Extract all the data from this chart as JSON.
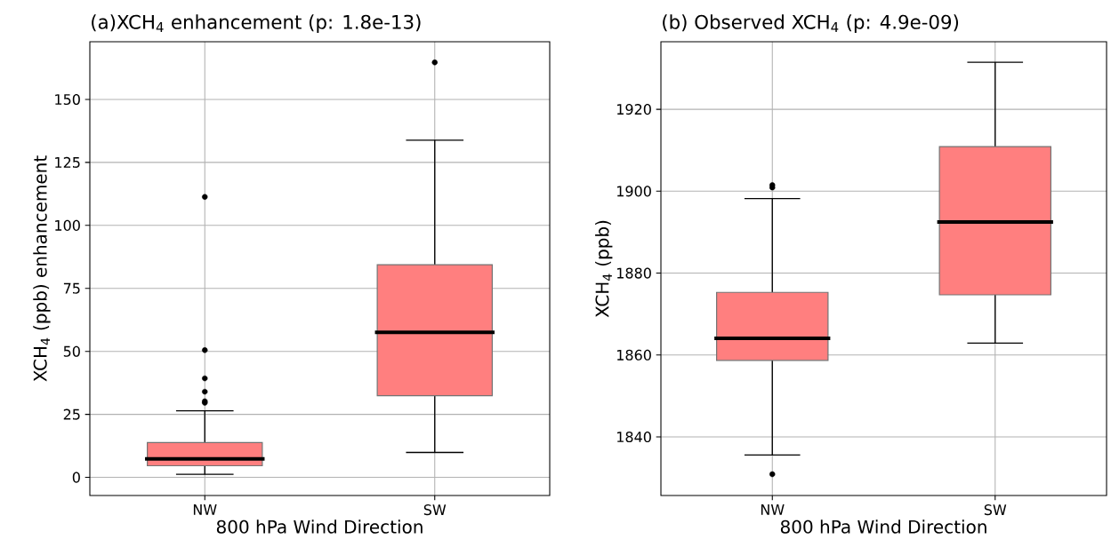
{
  "chart_data": [
    {
      "type": "box",
      "title": "(a)XCH$_{4}$ enhancement (p: 1.8e-13)",
      "xlabel": "800 hPa Wind Direction",
      "ylabel": "XCH$_{4}$ (ppb) enhancement",
      "categories": [
        "NW",
        "SW"
      ],
      "color": "#ff7f7f",
      "ylim": [
        -7.2,
        172.9
      ],
      "yticks": [
        0,
        25,
        50,
        75,
        100,
        125,
        150
      ],
      "grid": true,
      "boxes": [
        {
          "low": 1.2,
          "q1": 4.6,
          "median": 7.3,
          "q3": 13.8,
          "high": 26.4,
          "outliers": [
            29.6,
            30.2,
            34,
            39.3,
            50.5,
            111.3
          ]
        },
        {
          "low": 9.9,
          "q1": 32.4,
          "median": 57.6,
          "q3": 84.4,
          "high": 133.8,
          "outliers": [
            164.7
          ]
        }
      ]
    },
    {
      "type": "box",
      "title": "(b) Observed XCH$_{4}$ (p: 4.9e-09)",
      "xlabel": "800 hPa Wind Direction",
      "ylabel": "XCH$_{4}$ (ppb)",
      "categories": [
        "NW",
        "SW"
      ],
      "color": "#ff7f7f",
      "ylim": [
        1825.7,
        1936.5
      ],
      "yticks": [
        1840,
        1860,
        1880,
        1900,
        1920
      ],
      "grid": true,
      "boxes": [
        {
          "low": 1835.6,
          "q1": 1858.7,
          "median": 1864.1,
          "q3": 1875.3,
          "high": 1898.2,
          "outliers": [
            1830.9,
            1900.9,
            1901.5
          ]
        },
        {
          "low": 1862.9,
          "q1": 1874.7,
          "median": 1892.5,
          "q3": 1910.9,
          "high": 1931.5
        }
      ]
    }
  ]
}
